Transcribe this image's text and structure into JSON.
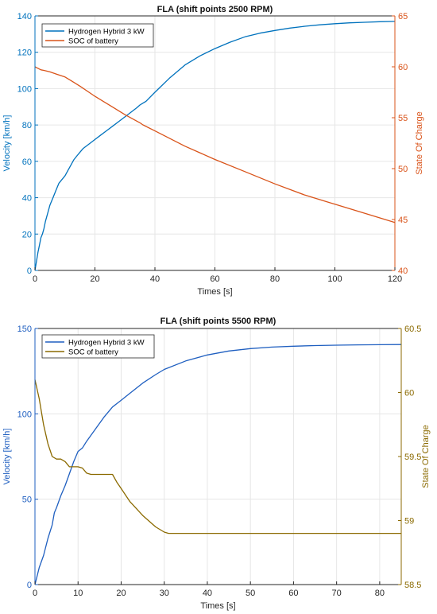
{
  "chart_data": [
    {
      "type": "line",
      "title": "FLA (shift points 2500 RPM)",
      "xlabel": "Times [s]",
      "ylabel_left": "Velocity [km/h]",
      "ylabel_right": "State Of Charge",
      "xlim": [
        0,
        120
      ],
      "ylim_left": [
        0,
        140
      ],
      "ylim_right": [
        40,
        65
      ],
      "xticks": [
        "0",
        "20",
        "40",
        "60",
        "80",
        "100",
        "120"
      ],
      "yticks_left": [
        "0",
        "20",
        "40",
        "60",
        "80",
        "100",
        "120",
        "140"
      ],
      "yticks_right": [
        "40",
        "45",
        "50",
        "55",
        "60",
        "65"
      ],
      "grid": true,
      "legend_position": "top-left",
      "series": [
        {
          "name": "Hydrogen Hybrid 3 kW",
          "axis": "left",
          "color": "#0072BD",
          "x": [
            0,
            0.5,
            1,
            1.5,
            2,
            2.5,
            3,
            3.5,
            4,
            5,
            6,
            7,
            8,
            9,
            10,
            11,
            12,
            13,
            14,
            15,
            16,
            18,
            20,
            22,
            24,
            26,
            28,
            30,
            32,
            34,
            35,
            36,
            37,
            40,
            45,
            50,
            55,
            60,
            65,
            70,
            75,
            80,
            85,
            90,
            95,
            100,
            105,
            110,
            115,
            120
          ],
          "y": [
            0,
            5,
            10,
            14,
            18,
            20,
            23,
            27,
            30,
            36,
            40,
            44,
            48,
            50,
            52,
            55,
            58,
            61,
            63,
            65,
            67,
            69.5,
            72,
            74.5,
            77,
            79.5,
            82,
            84.5,
            87,
            89.5,
            91,
            92,
            93,
            98,
            106,
            113,
            118,
            122,
            125.5,
            128.5,
            130.5,
            132,
            133.3,
            134.3,
            135.1,
            135.7,
            136.2,
            136.5,
            136.8,
            137
          ]
        },
        {
          "name": "SOC of battery",
          "axis": "right",
          "color": "#D95319",
          "x": [
            0,
            1,
            2,
            3,
            5,
            7,
            10,
            12,
            15,
            18,
            20,
            25,
            30,
            35,
            36,
            40,
            50,
            60,
            70,
            80,
            90,
            100,
            110,
            120
          ],
          "y": [
            60,
            59.85,
            59.7,
            59.65,
            59.5,
            59.3,
            59,
            58.65,
            58.1,
            57.5,
            57.1,
            56.2,
            55.3,
            54.5,
            54.3,
            53.7,
            52.2,
            50.9,
            49.7,
            48.5,
            47.4,
            46.5,
            45.6,
            44.7
          ]
        }
      ]
    },
    {
      "type": "line",
      "title": "FLA (shift points 5500 RPM)",
      "xlabel": "Times [s]",
      "ylabel_left": "Velocity [km/h]",
      "ylabel_right": "State Of Charge",
      "xlim": [
        0,
        85
      ],
      "ylim_left": [
        0,
        150
      ],
      "ylim_right": [
        58.5,
        60.5
      ],
      "xticks": [
        "0",
        "10",
        "20",
        "30",
        "40",
        "50",
        "60",
        "70",
        "80"
      ],
      "yticks_left": [
        "0",
        "50",
        "100",
        "150"
      ],
      "yticks_right": [
        "58.5",
        "59",
        "59.5",
        "60",
        "60.5"
      ],
      "grid": true,
      "legend_position": "top-left",
      "series": [
        {
          "name": "Hydrogen Hybrid 3 kW",
          "axis": "left",
          "color": "#1F5FC0",
          "x": [
            0,
            0.5,
            1,
            2,
            3,
            4,
            4.5,
            5,
            6,
            7,
            8,
            9,
            10,
            11,
            12,
            14,
            16,
            18,
            19,
            20,
            22,
            25,
            28,
            30,
            35,
            40,
            45,
            50,
            55,
            60,
            65,
            70,
            75,
            80,
            85
          ],
          "y": [
            0,
            5,
            10,
            17,
            27,
            35,
            42,
            45,
            52,
            58,
            65,
            72,
            78,
            80,
            84,
            91,
            98,
            104,
            106,
            108,
            112,
            118,
            123,
            126,
            131,
            134.5,
            136.8,
            138.2,
            139.1,
            139.6,
            140,
            140.2,
            140.4,
            140.5,
            140.6
          ]
        },
        {
          "name": "SOC of battery",
          "axis": "right",
          "color": "#8B6A00",
          "x": [
            0,
            1,
            2,
            3,
            4,
            5,
            6,
            7,
            8,
            9,
            10,
            11,
            12,
            13,
            14,
            18,
            19,
            20,
            22,
            25,
            28,
            30,
            31,
            40,
            50,
            60,
            70,
            80,
            85
          ],
          "y": [
            60.1,
            59.95,
            59.75,
            59.6,
            59.5,
            59.48,
            59.48,
            59.46,
            59.42,
            59.42,
            59.42,
            59.41,
            59.37,
            59.36,
            59.36,
            59.36,
            59.3,
            59.25,
            59.15,
            59.04,
            58.95,
            58.91,
            58.9,
            58.9,
            58.9,
            58.9,
            58.9,
            58.9,
            58.9
          ]
        }
      ]
    }
  ]
}
